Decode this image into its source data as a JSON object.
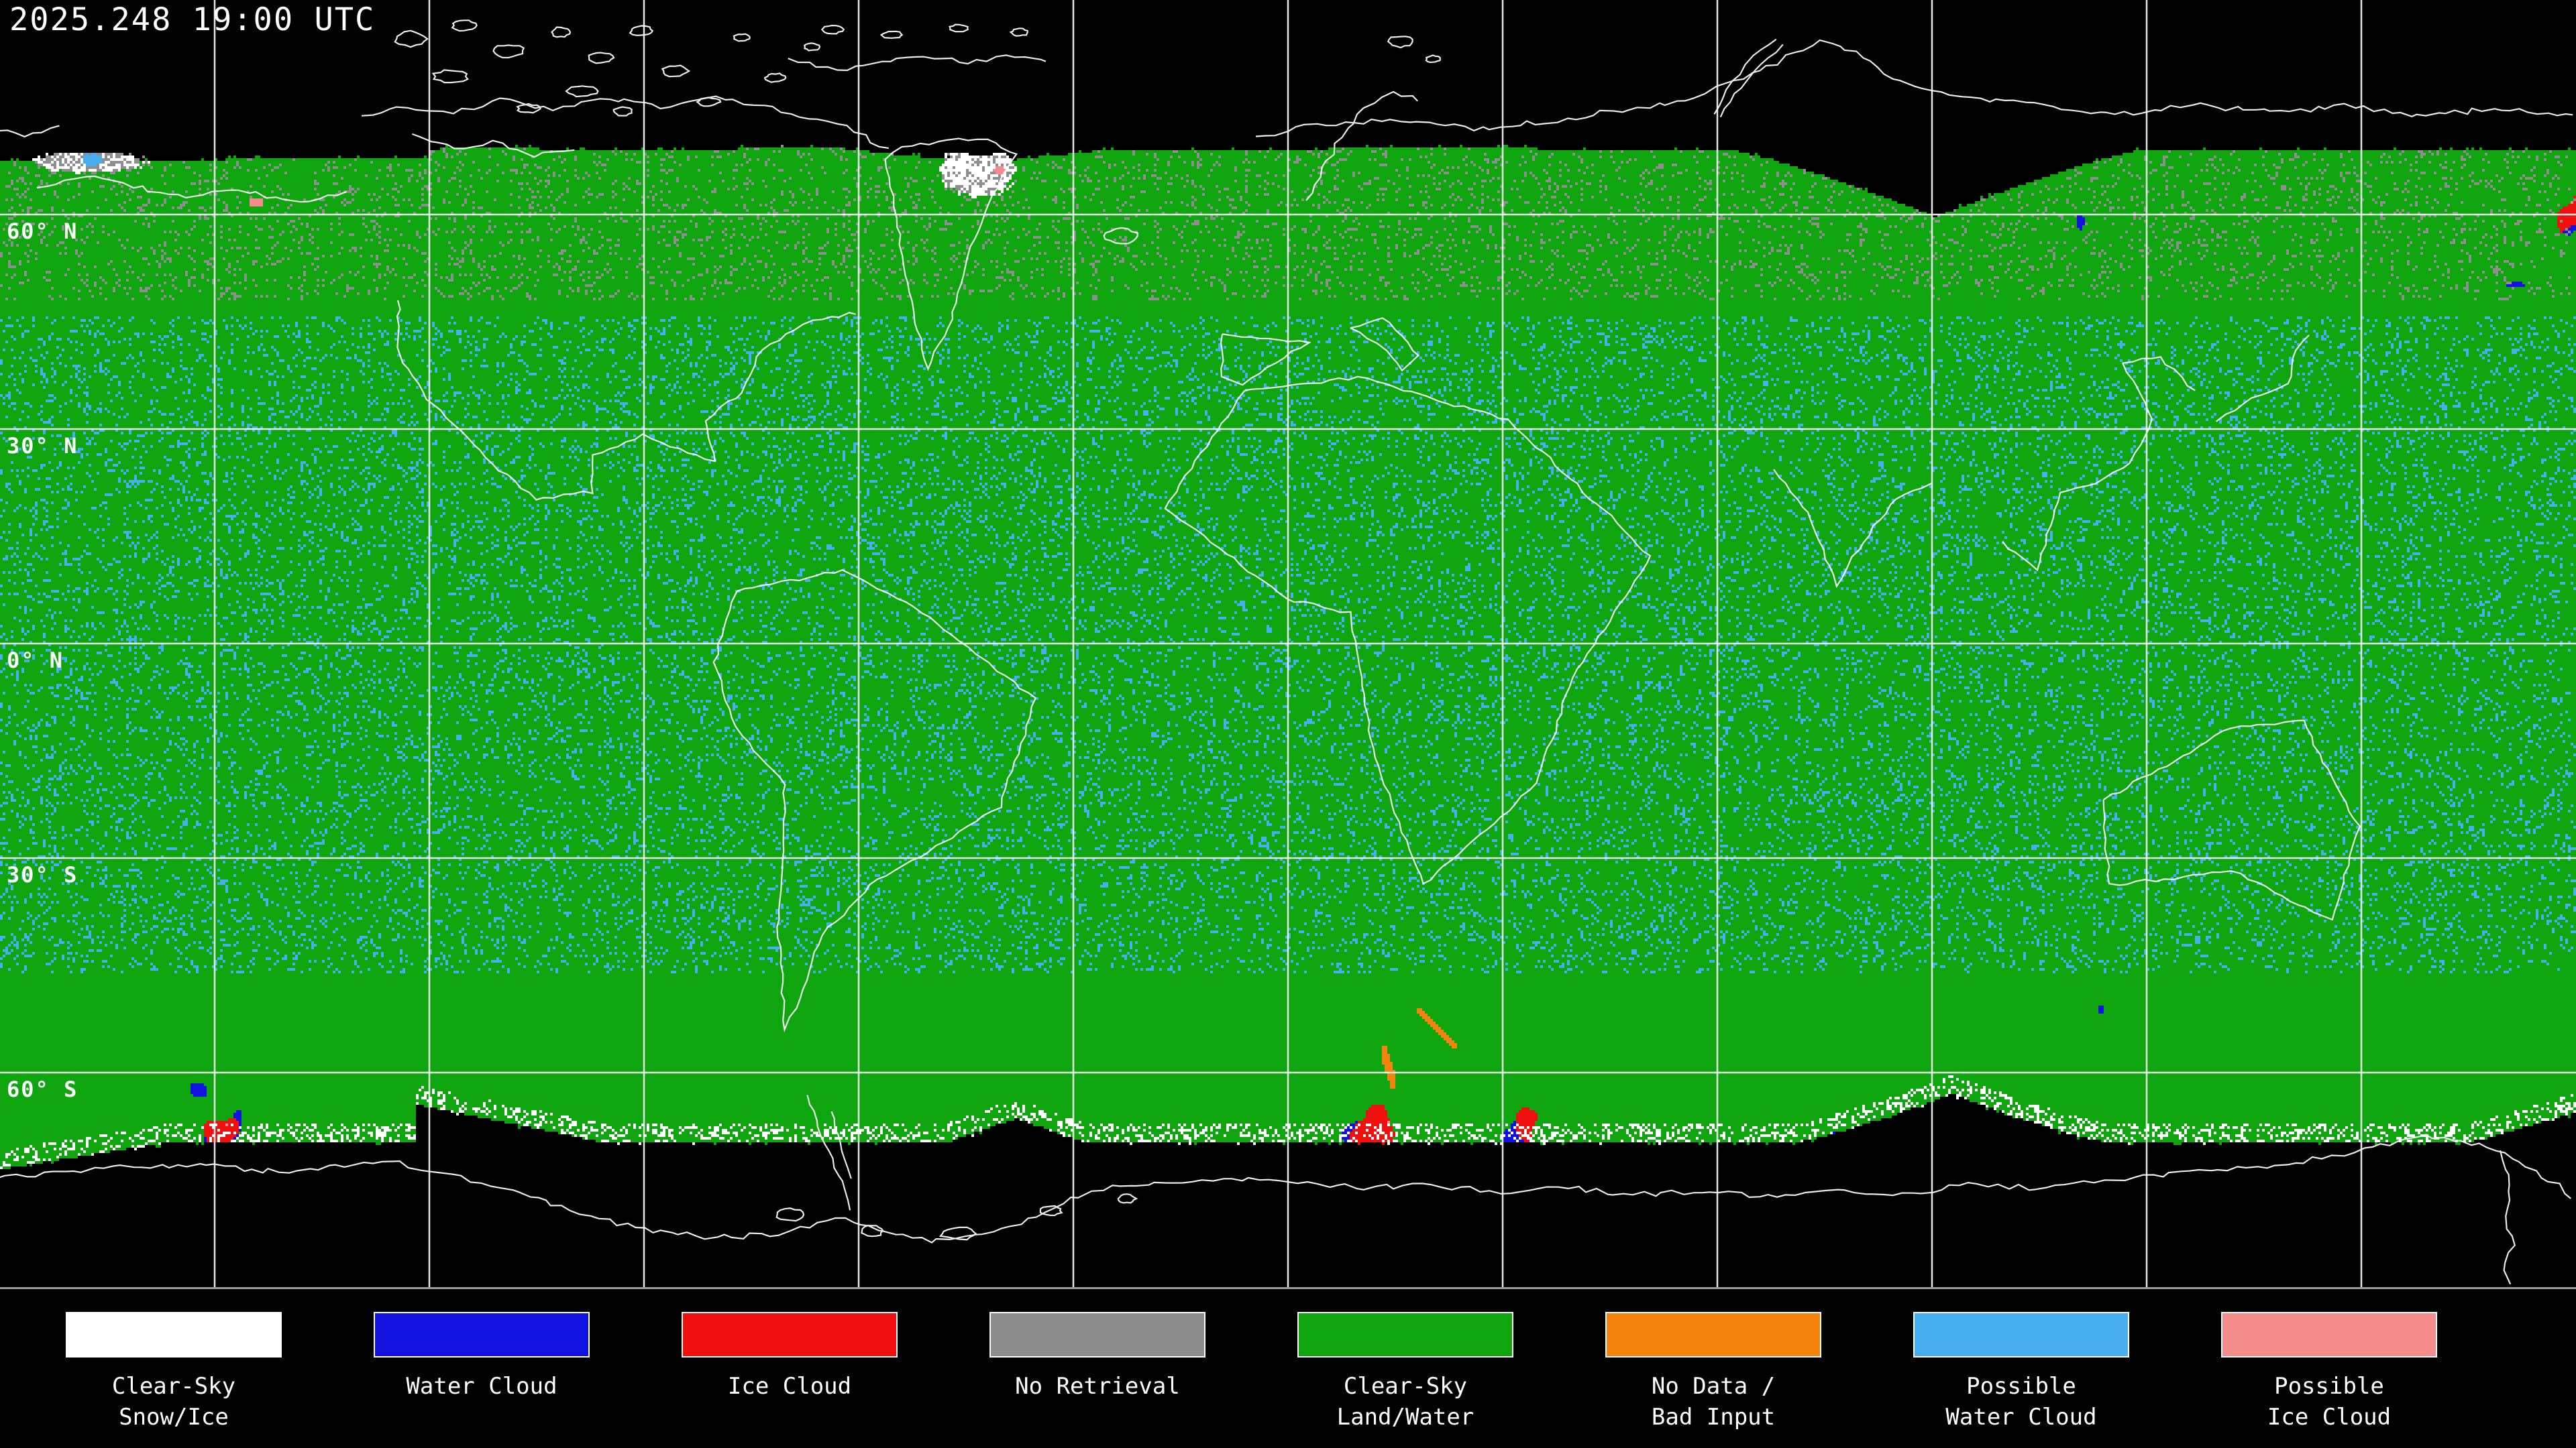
{
  "header": {
    "timestamp": "2025.248 19:00 UTC"
  },
  "map": {
    "projection": "equirectangular",
    "grid": {
      "lon_step_deg": 30,
      "lat_step_deg": 30,
      "line_color": "#ffffff"
    },
    "latitude_labels": [
      {
        "text": "60° N",
        "lat": 60
      },
      {
        "text": "30° N",
        "lat": 30
      },
      {
        "text": "0° N",
        "lat": 0
      },
      {
        "text": "30° S",
        "lat": -30
      },
      {
        "text": "60° S",
        "lat": -60
      }
    ],
    "classes": {
      "clear_sky_snow_ice": {
        "label": "Clear-Sky Snow/Ice",
        "color": "#ffffff"
      },
      "water_cloud": {
        "label": "Water Cloud",
        "color": "#1212e0"
      },
      "ice_cloud": {
        "label": "Ice Cloud",
        "color": "#f01010"
      },
      "no_retrieval": {
        "label": "No Retrieval",
        "color": "#8e8e8e"
      },
      "clear_sky_land_water": {
        "label": "Clear-Sky Land/Water",
        "color": "#0fa50f"
      },
      "no_data_bad_input": {
        "label": "No Data / Bad Input",
        "color": "#f5840f"
      },
      "possible_water_cloud": {
        "label": "Possible Water Cloud",
        "color": "#47aef0"
      },
      "possible_ice_cloud": {
        "label": "Possible Ice Cloud",
        "color": "#f58c8c"
      }
    }
  },
  "legend": {
    "items": [
      {
        "class": "clear_sky_snow_ice",
        "lines": [
          "Clear-Sky",
          "Snow/Ice"
        ]
      },
      {
        "class": "water_cloud",
        "lines": [
          "Water Cloud"
        ]
      },
      {
        "class": "ice_cloud",
        "lines": [
          "Ice Cloud"
        ]
      },
      {
        "class": "no_retrieval",
        "lines": [
          "No Retrieval"
        ]
      },
      {
        "class": "clear_sky_land_water",
        "lines": [
          "Clear-Sky",
          "Land/Water"
        ]
      },
      {
        "class": "no_data_bad_input",
        "lines": [
          "No Data /",
          "Bad Input"
        ]
      },
      {
        "class": "possible_water_cloud",
        "lines": [
          "Possible",
          "Water Cloud"
        ]
      },
      {
        "class": "possible_ice_cloud",
        "lines": [
          "Possible",
          "Ice Cloud"
        ]
      }
    ]
  }
}
